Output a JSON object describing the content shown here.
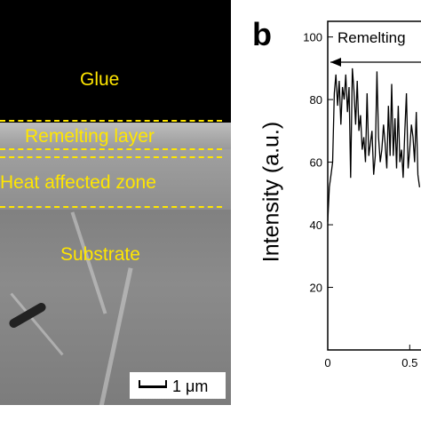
{
  "panel_a": {
    "labels": {
      "glue": "Glue",
      "remelting_layer": "Remelting layer",
      "heat_affected_zone": "Heat affected zone",
      "substrate": "Substrate"
    },
    "scale_bar": "1 μm",
    "colors": {
      "annotation": "#ffe600",
      "glue": "#000000"
    }
  },
  "panel_b": {
    "letter": "b",
    "arrow_label": "Remelting",
    "colors": {
      "line": "#000000"
    }
  },
  "chart_data": {
    "type": "line",
    "ylabel": "Intensity (a.u.)",
    "xlabel": "",
    "xlim": [
      0,
      0.65
    ],
    "ylim": [
      0,
      105
    ],
    "yticks": [
      20,
      40,
      60,
      80,
      100
    ],
    "xticks": [
      {
        "value": 0,
        "label": "0"
      },
      {
        "value": 0.5,
        "label": "0.5"
      }
    ],
    "grid": false,
    "series": [
      {
        "x": [
          0.0,
          0.01,
          0.02,
          0.03,
          0.04,
          0.05,
          0.06,
          0.07,
          0.08,
          0.09,
          0.1,
          0.11,
          0.12,
          0.13,
          0.14,
          0.15,
          0.16,
          0.17,
          0.18,
          0.19,
          0.2,
          0.21,
          0.22,
          0.23,
          0.24,
          0.25,
          0.26,
          0.27,
          0.28,
          0.29,
          0.3,
          0.31,
          0.32,
          0.33,
          0.34,
          0.35,
          0.36,
          0.37,
          0.38,
          0.39,
          0.4,
          0.41,
          0.42,
          0.43,
          0.44,
          0.45,
          0.46,
          0.47,
          0.48,
          0.49,
          0.5,
          0.51,
          0.52,
          0.53,
          0.54,
          0.55,
          0.56
        ],
        "y": [
          41,
          52,
          56,
          60,
          82,
          88,
          78,
          86,
          72,
          84,
          80,
          88,
          76,
          84,
          55,
          90,
          83,
          72,
          86,
          70,
          75,
          64,
          68,
          60,
          82,
          62,
          66,
          70,
          56,
          62,
          89,
          68,
          60,
          64,
          72,
          66,
          58,
          78,
          62,
          85,
          62,
          74,
          58,
          78,
          60,
          64,
          55,
          70,
          82,
          58,
          64,
          72,
          68,
          60,
          76,
          56,
          52
        ]
      }
    ]
  }
}
